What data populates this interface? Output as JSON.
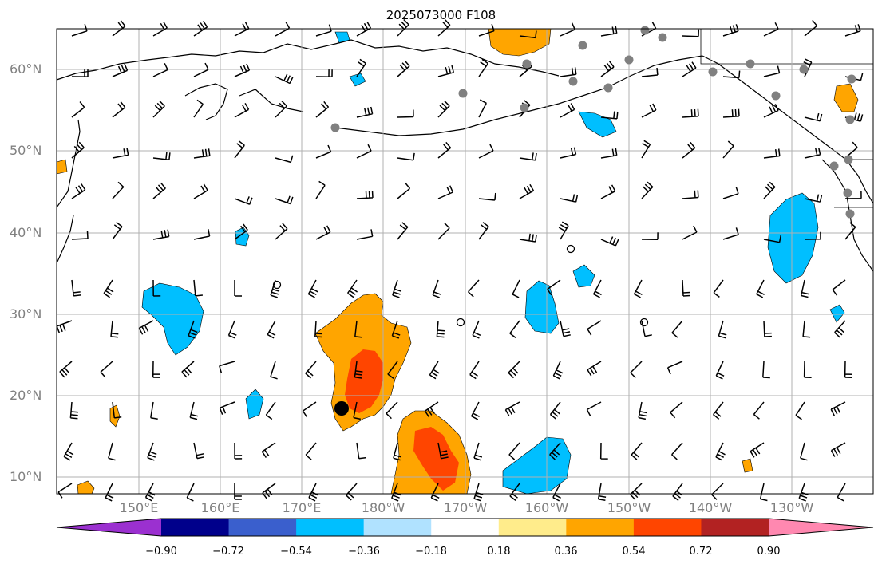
{
  "title": "2025073000 F108",
  "map": {
    "lat_labels": [
      "60°N",
      "50°N",
      "40°N",
      "30°N",
      "20°N",
      "10°N"
    ],
    "lon_labels": [
      "150°E",
      "160°E",
      "170°E",
      "180°W",
      "170°W",
      "160°W",
      "150°W",
      "140°W",
      "130°W"
    ]
  },
  "colorbar": {
    "ticks": [
      "−0.90",
      "−0.72",
      "−0.54",
      "−0.36",
      "−0.18",
      "0.18",
      "0.36",
      "0.54",
      "0.72",
      "0.90"
    ],
    "colors": [
      "#9b30d0",
      "#00008b",
      "#3a5fcd",
      "#00bfff",
      "#b0e2ff",
      "#ffffff",
      "#ffec8b",
      "#ffa500",
      "#ff4500",
      "#b22222",
      "#ff88b0"
    ]
  },
  "colors": {
    "orange": "#ffa500",
    "red_orange": "#ff4500",
    "sky_blue": "#00bfff",
    "light_blue": "#b0e2ff",
    "grid": "#b0b0b0",
    "station": "#808080"
  }
}
